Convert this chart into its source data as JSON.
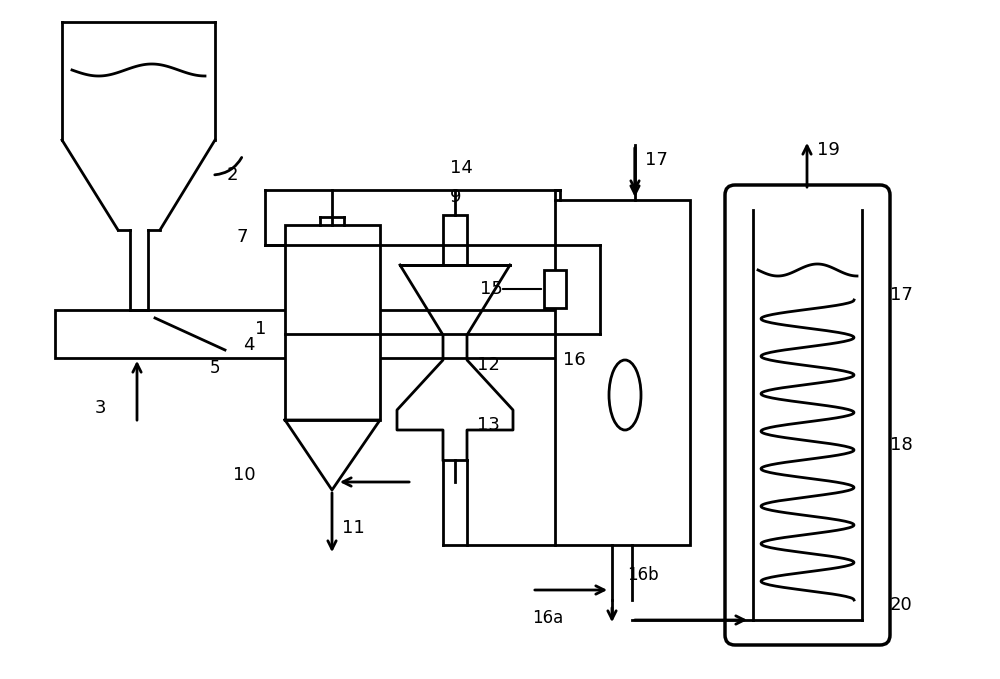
{
  "bg_color": "#ffffff",
  "line_color": "#000000",
  "lw": 2.0,
  "fig_width": 10.0,
  "fig_height": 6.79,
  "dpi": 100
}
